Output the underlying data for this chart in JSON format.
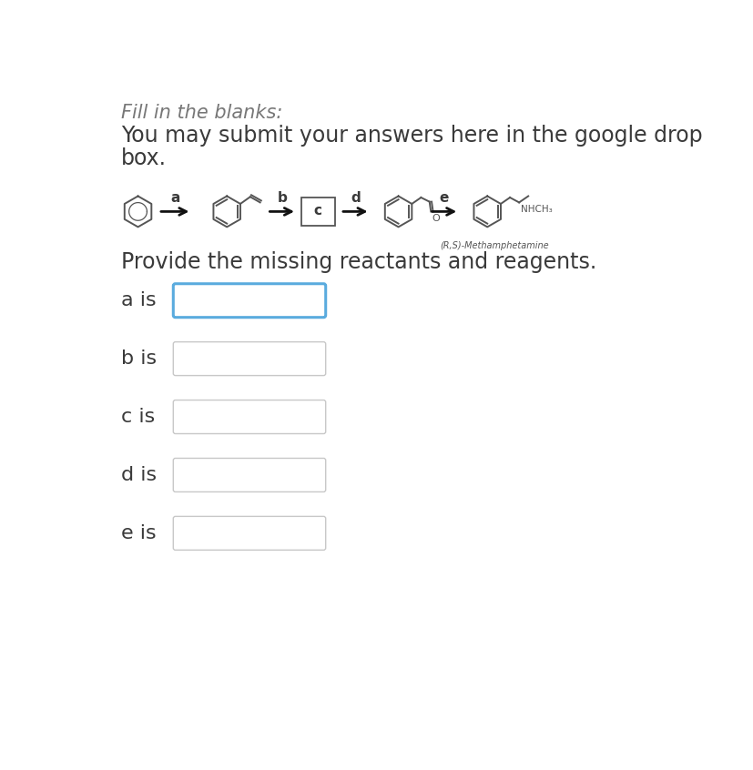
{
  "title_italic": "Fill in the blanks:",
  "subtitle_line1": "You may submit your answers here in the google drop",
  "subtitle_line2": "box.",
  "reaction_label": "Provide the missing reactants and reagents.",
  "input_labels": [
    "a is",
    "b is",
    "c is",
    "d is",
    "e is"
  ],
  "bg_color": "#ffffff",
  "box_border_active": "#5aabde",
  "box_border_inactive": "#c8c8c8",
  "text_color": "#3a3a3a",
  "nhch3_label": "NHCH₃",
  "rs_label": "(R,S)-Methamphetamine",
  "mol_color": "#555555",
  "arrow_color": "#111111",
  "title_fontsize": 15,
  "subtitle_fontsize": 17,
  "label_fontsize": 16,
  "arrow_label_fontsize": 11
}
